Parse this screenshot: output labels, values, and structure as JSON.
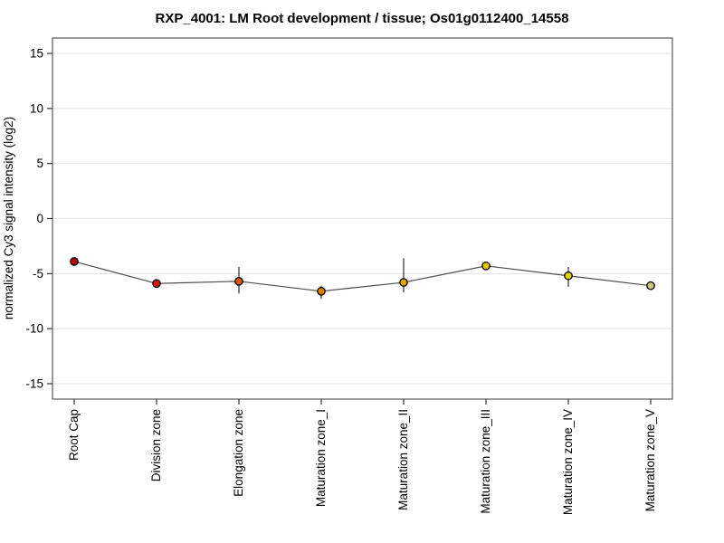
{
  "title": "RXP_4001: LM Root development / tissue; Os01g0112400_14558",
  "chart_data": {
    "type": "line",
    "title": "RXP_4001: LM Root development / tissue; Os01g0112400_14558",
    "xlabel": "",
    "ylabel": "normalized Cy3 signal intensity (log2)",
    "ylim": [
      -16.4,
      16.4
    ],
    "yticks": [
      15,
      10,
      5,
      0,
      -5,
      -10,
      -15
    ],
    "grid": true,
    "legend_position": "none",
    "categories": [
      "Root Cap",
      "Division zone",
      "Elongation zone",
      "Maturation zone_I",
      "Maturation zone_II",
      "Maturation zone_III",
      "Maturation zone_IV",
      "Maturation zone_V"
    ],
    "series": [
      {
        "name": "normalized Cy3 signal intensity (log2)",
        "values": [
          -3.9,
          -5.9,
          -5.7,
          -6.6,
          -5.8,
          -4.3,
          -5.2,
          -6.1
        ],
        "error_high": [
          -3.6,
          -5.6,
          -4.4,
          -6.1,
          -3.6,
          -4.2,
          -4.4,
          -5.7
        ],
        "error_low": [
          -4.2,
          -6.3,
          -6.8,
          -7.3,
          -6.7,
          -4.4,
          -6.2,
          -6.5
        ],
        "point_colors": [
          "#b40000",
          "#da1400",
          "#e05600",
          "#e07c00",
          "#e0a400",
          "#ddc800",
          "#e6d400",
          "#cdc67c"
        ],
        "line_color": "#4d4d4d",
        "error_bar_color": "#2b2b2b"
      }
    ],
    "colors": {
      "grid": "#e4e4e4",
      "plot_border": "#595959",
      "tick": "#333333",
      "background": "#ffffff"
    }
  }
}
